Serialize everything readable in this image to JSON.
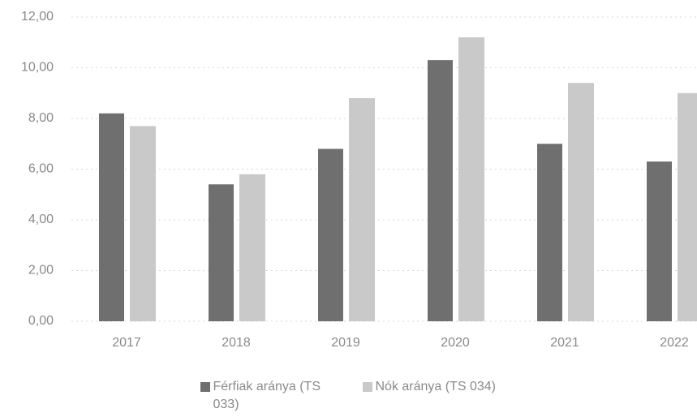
{
  "chart_data": {
    "type": "bar",
    "categories": [
      "2017",
      "2018",
      "2019",
      "2020",
      "2021",
      "2022"
    ],
    "series": [
      {
        "name": "Férfiak aránya (TS 033)",
        "color": "#6f6f6f",
        "values": [
          8.2,
          5.4,
          6.8,
          10.3,
          7.0,
          6.3
        ]
      },
      {
        "name": "Nók aránya (TS 034)",
        "color": "#c9c9c9",
        "values": [
          7.7,
          5.8,
          8.8,
          11.2,
          9.4,
          9.0
        ]
      }
    ],
    "ylim": [
      0,
      12
    ],
    "yticks": [
      {
        "value": 0,
        "label": "0,00"
      },
      {
        "value": 2,
        "label": "2,00"
      },
      {
        "value": 4,
        "label": "4,00"
      },
      {
        "value": 6,
        "label": "6,00"
      },
      {
        "value": 8,
        "label": "8,00"
      },
      {
        "value": 10,
        "label": "10,00"
      },
      {
        "value": 12,
        "label": "12,00"
      }
    ],
    "grid": true,
    "legend": "bottom"
  }
}
